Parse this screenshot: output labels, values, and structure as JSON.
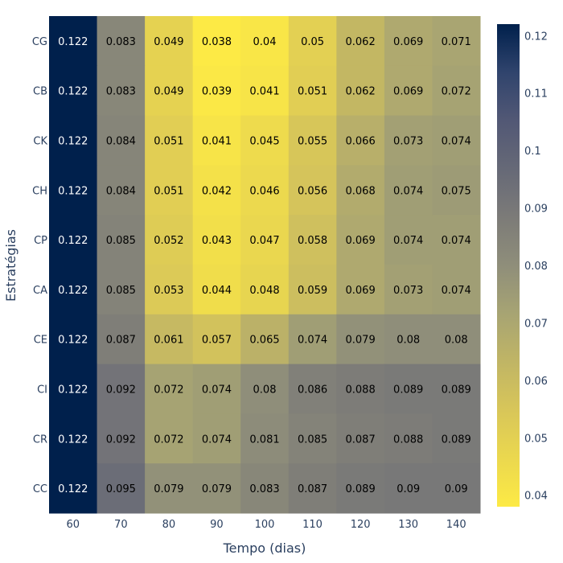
{
  "chart_data": {
    "type": "heatmap",
    "title": "",
    "xlabel": "Tempo (dias)",
    "ylabel": "Estratégias",
    "x": [
      "60",
      "70",
      "80",
      "90",
      "100",
      "110",
      "120",
      "130",
      "140"
    ],
    "y": [
      "CG",
      "CB",
      "CK",
      "CH",
      "CP",
      "CA",
      "CE",
      "CI",
      "CR",
      "CC"
    ],
    "z": [
      [
        "0.122",
        "0.083",
        "0.049",
        "0.038",
        "0.04",
        "0.05",
        "0.062",
        "0.069",
        "0.071"
      ],
      [
        "0.122",
        "0.083",
        "0.049",
        "0.039",
        "0.041",
        "0.051",
        "0.062",
        "0.069",
        "0.072"
      ],
      [
        "0.122",
        "0.084",
        "0.051",
        "0.041",
        "0.045",
        "0.055",
        "0.066",
        "0.073",
        "0.074"
      ],
      [
        "0.122",
        "0.084",
        "0.051",
        "0.042",
        "0.046",
        "0.056",
        "0.068",
        "0.074",
        "0.075"
      ],
      [
        "0.122",
        "0.085",
        "0.052",
        "0.043",
        "0.047",
        "0.058",
        "0.069",
        "0.074",
        "0.074"
      ],
      [
        "0.122",
        "0.085",
        "0.053",
        "0.044",
        "0.048",
        "0.059",
        "0.069",
        "0.073",
        "0.074"
      ],
      [
        "0.122",
        "0.087",
        "0.061",
        "0.057",
        "0.065",
        "0.074",
        "0.079",
        "0.08",
        "0.08"
      ],
      [
        "0.122",
        "0.092",
        "0.072",
        "0.074",
        "0.08",
        "0.086",
        "0.088",
        "0.089",
        "0.089"
      ],
      [
        "0.122",
        "0.092",
        "0.072",
        "0.074",
        "0.081",
        "0.085",
        "0.087",
        "0.088",
        "0.089"
      ],
      [
        "0.122",
        "0.095",
        "0.079",
        "0.079",
        "0.083",
        "0.087",
        "0.089",
        "0.09",
        "0.09"
      ]
    ],
    "colorscale": "cividis (reversed)",
    "colorbar": {
      "range": [
        0.038,
        0.122
      ],
      "ticks": [
        "0.04",
        "0.05",
        "0.06",
        "0.07",
        "0.08",
        "0.09",
        "0.1",
        "0.11",
        "0.12"
      ]
    },
    "grid": false
  }
}
